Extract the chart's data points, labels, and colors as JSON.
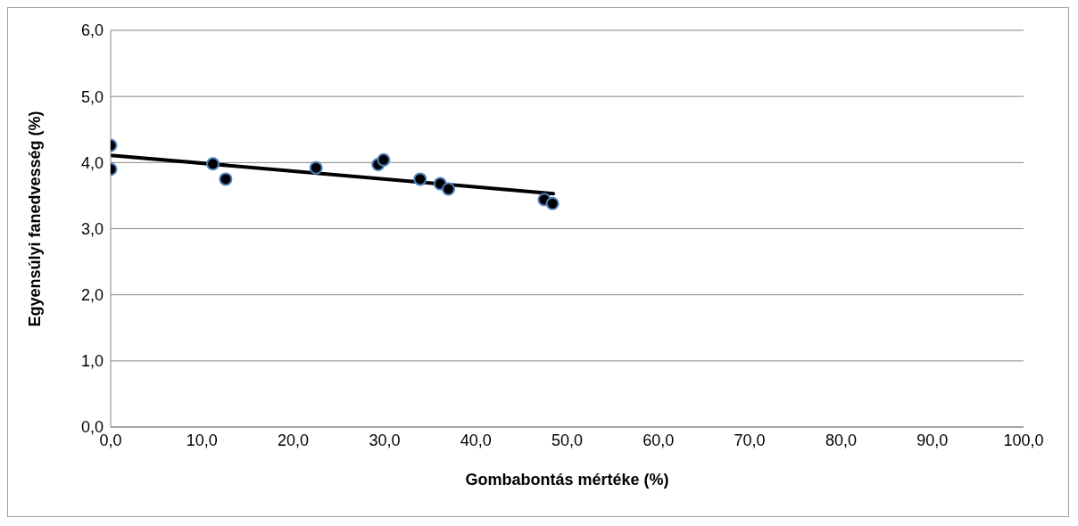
{
  "chart_data": {
    "type": "scatter",
    "xlabel": "Gombabontás mértéke (%)",
    "ylabel": "Egyensúlyi fanedvesség (%)",
    "xlim": [
      0,
      100
    ],
    "xticks": [
      {
        "value": 0,
        "label": "0,0"
      },
      {
        "value": 10,
        "label": "10,0"
      },
      {
        "value": 20,
        "label": "20,0"
      },
      {
        "value": 30,
        "label": "30,0"
      },
      {
        "value": 40,
        "label": "40,0"
      },
      {
        "value": 50,
        "label": "50,0"
      },
      {
        "value": 60,
        "label": "60,0"
      },
      {
        "value": 70,
        "label": "70,0"
      },
      {
        "value": 80,
        "label": "80,0"
      },
      {
        "value": 90,
        "label": "90,0"
      },
      {
        "value": 100,
        "label": "100,0"
      }
    ],
    "ylim": [
      0,
      6
    ],
    "yticks": [
      {
        "value": 0,
        "label": "0,0"
      },
      {
        "value": 1,
        "label": "1,0"
      },
      {
        "value": 2,
        "label": "2,0"
      },
      {
        "value": 3,
        "label": "3,0"
      },
      {
        "value": 4,
        "label": "4,0"
      },
      {
        "value": 5,
        "label": "5,0"
      },
      {
        "value": 6,
        "label": "6,0"
      }
    ],
    "grid": "y",
    "series": [
      {
        "marker": "circle",
        "color": "#000000",
        "x": [
          0,
          0,
          11.2,
          12.6,
          22.5,
          29.3,
          29.9,
          33.9,
          36.1,
          37.0,
          47.5,
          48.4
        ],
        "values": [
          4.26,
          3.9,
          3.98,
          3.75,
          3.92,
          3.97,
          4.04,
          3.75,
          3.68,
          3.6,
          3.44,
          3.38
        ]
      },
      {
        "type": "line",
        "marker": "none",
        "color": "#000000",
        "line_style": "solid",
        "x": [
          0,
          48.5
        ],
        "values": [
          4.11,
          3.53
        ]
      }
    ]
  }
}
